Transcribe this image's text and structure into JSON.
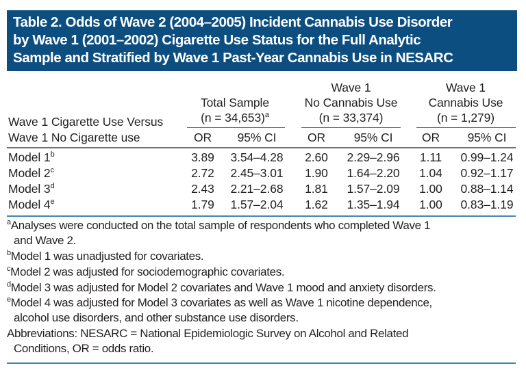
{
  "title": {
    "lines": [
      "Table 2. Odds of Wave 2 (2004–2005) Incident Cannabis Use Disorder",
      "by Wave 1 (2001–2002) Cigarette Use Status for the Full Analytic",
      "Sample and Stratified by Wave 1 Past-Year Cannabis Use in NESARC"
    ]
  },
  "colors": {
    "title_band": "#0d4e80",
    "blue_rule": "#3f86b3"
  },
  "table": {
    "row_header": {
      "line1": "Wave 1 Cigarette Use Versus",
      "line2": "Wave 1 No Cigarette use"
    },
    "groups": [
      {
        "line1": "",
        "line2": "Total Sample",
        "line3": "(n = 34,653)",
        "sup": "a"
      },
      {
        "line1": "Wave 1",
        "line2": "No Cannabis Use",
        "line3": "(n = 33,374)",
        "sup": ""
      },
      {
        "line1": "Wave 1",
        "line2": "Cannabis Use",
        "line3": "(n = 1,279)",
        "sup": ""
      }
    ],
    "subheaders": {
      "or": "OR",
      "ci": "95% CI"
    },
    "rows": [
      {
        "label": "Model 1",
        "sup": "b",
        "values": [
          "3.89",
          "3.54–4.28",
          "2.60",
          "2.29–2.96",
          "1.11",
          "0.99–1.24"
        ]
      },
      {
        "label": "Model 2",
        "sup": "c",
        "values": [
          "2.72",
          "2.45–3.01",
          "1.90",
          "1.64–2.20",
          "1.04",
          "0.92–1.17"
        ]
      },
      {
        "label": "Model 3",
        "sup": "d",
        "values": [
          "2.43",
          "2.21–2.68",
          "1.81",
          "1.57–2.09",
          "1.00",
          "0.88–1.14"
        ]
      },
      {
        "label": "Model 4",
        "sup": "e",
        "values": [
          "1.79",
          "1.57–2.04",
          "1.62",
          "1.35–1.94",
          "1.00",
          "0.83–1.19"
        ]
      }
    ]
  },
  "footnotes": [
    {
      "sup": "a",
      "line1": "Analyses were conducted on the total sample of respondents who completed Wave 1",
      "line2": "and Wave 2."
    },
    {
      "sup": "b",
      "line1": "Model 1 was unadjusted for covariates.",
      "line2": ""
    },
    {
      "sup": "c",
      "line1": "Model 2 was adjusted for sociodemographic covariates.",
      "line2": ""
    },
    {
      "sup": "d",
      "line1": "Model 3 was adjusted for Model 2 covariates and Wave 1 mood and anxiety disorders.",
      "line2": ""
    },
    {
      "sup": "e",
      "line1": "Model 4 was adjusted for Model 3 covariates as well as Wave 1 nicotine dependence,",
      "line2": "alcohol use disorders, and other substance use disorders."
    },
    {
      "sup": "",
      "line1": "Abbreviations: NESARC = National Epidemiologic Survey on Alcohol and Related",
      "line2": "Conditions, OR = odds ratio."
    }
  ]
}
